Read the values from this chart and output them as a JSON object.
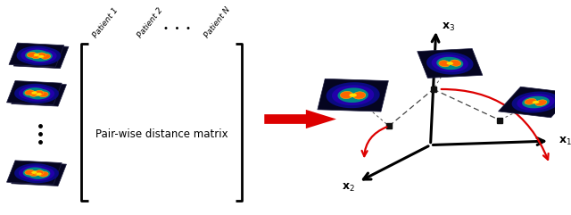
{
  "bg_color": "#ffffff",
  "arrow_color": "#dd0000",
  "matrix_text": "Pair-wise distance matrix",
  "patient_labels": [
    "Patient 1",
    "Patient 2",
    "Patient N"
  ],
  "dots_label": "•  •  •",
  "figsize": [
    6.4,
    2.41
  ],
  "dpi": 100,
  "bracket_lw": 2.0,
  "spect_bg": "#050520",
  "spect_brain_outer": "#2244cc",
  "spect_hot_colors": [
    "#ff4400",
    "#ff8800",
    "#ffcc00"
  ],
  "axis_lw": 2.2,
  "axis_color": "#000000",
  "dashed_lw": 0.9,
  "red_arrow_lw": 1.6,
  "point_color": "#111111",
  "point_size": 4.5
}
